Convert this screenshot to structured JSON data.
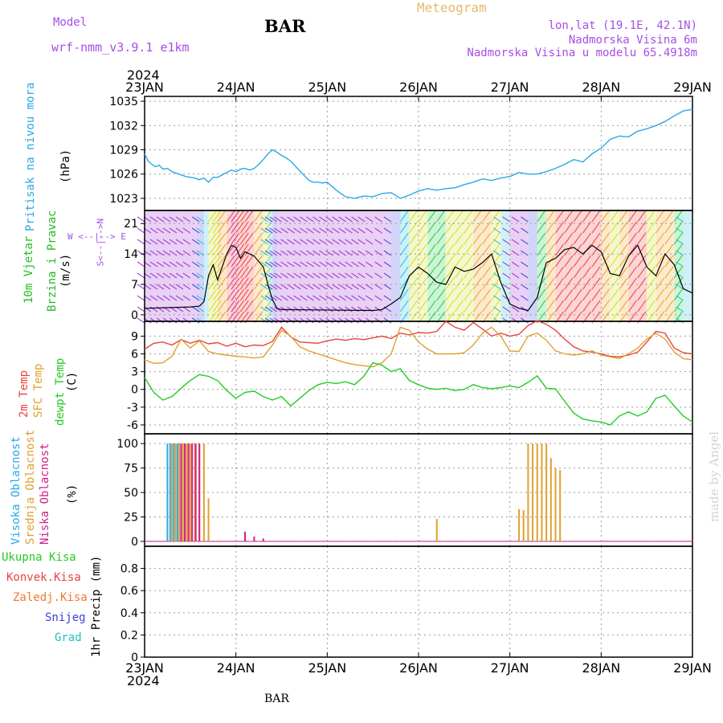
{
  "header": {
    "model_label": "Model",
    "model_name": "wrf-nmm_v3.9.1  e1km",
    "title": "BAR",
    "meteogram": "Meteogram",
    "lonlat": "lon,lat (19.1E, 42.1N)",
    "elevation": "Nadmorska Visina 6m",
    "model_elevation": "Nadmorska Visina u modelu 65.4918m",
    "footer": "BAR",
    "made_by": "made by Angel"
  },
  "colors": {
    "pressure": "#29a8e8",
    "temp2m": "#e8433f",
    "sfc_temp": "#e0a030",
    "dewpt": "#22cc22",
    "high_cloud": "#29a8e8",
    "mid_cloud": "#e0a030",
    "low_cloud": "#cc2288",
    "wind_label": "#22bb22",
    "compass": "#a64ee6",
    "purple": "#a64ee6",
    "grid": "#999999"
  },
  "time_axis": {
    "year": "2024",
    "labels": [
      "23JAN",
      "24JAN",
      "25JAN",
      "26JAN",
      "27JAN",
      "28JAN",
      "29JAN"
    ]
  },
  "panels": {
    "pressure": {
      "label": "Pritisak na nivou mora",
      "unit": "(hPa)"
    },
    "wind": {
      "label1": "10m Vjetar",
      "label2": "Brzina i Pravac",
      "unit": "(m/s)",
      "compass_ns": "S<--|-->N",
      "compass_ew": "W <--|--> E"
    },
    "temp": {
      "label1": "2m Temp",
      "label2": "SFC Temp",
      "label3": "dewpt Temp",
      "unit": "(C)"
    },
    "cloud": {
      "label1": "Visoka Oblacnost",
      "label2": "Srednja Oblacnost",
      "label3": "Niska Oblacnost",
      "unit": "(%)"
    },
    "precip": {
      "unit": "1hr Precip (mm)",
      "legend": [
        "Ukupna Kisa",
        "Konvek.Kisa",
        "Zaledj.Kisa",
        "Snijeg",
        "Grad"
      ]
    }
  },
  "chart_data": [
    {
      "type": "line",
      "name": "pressure",
      "x": [
        0,
        0.04,
        0.08,
        0.12,
        0.16,
        0.2,
        0.25,
        0.3,
        0.35,
        0.4,
        0.45,
        0.5,
        0.55,
        0.6,
        0.65,
        0.7,
        0.75,
        0.8,
        0.85,
        0.9,
        0.95,
        1.0,
        1.05,
        1.1,
        1.15,
        1.2,
        1.25,
        1.3,
        1.35,
        1.4,
        1.45,
        1.5,
        1.55,
        1.6,
        1.65,
        1.7,
        1.75,
        1.8,
        1.85,
        1.9,
        1.95,
        2.0,
        2.05,
        2.1,
        2.15,
        2.2,
        2.3,
        2.4,
        2.5,
        2.6,
        2.7,
        2.8,
        2.9,
        3.0,
        3.1,
        3.2,
        3.3,
        3.4,
        3.5,
        3.6,
        3.7,
        3.8,
        3.9,
        4.0,
        4.1,
        4.2,
        4.3,
        4.4,
        4.5,
        4.6,
        4.7,
        4.8,
        4.9,
        5.0,
        5.1,
        5.2,
        5.3,
        5.4,
        5.5,
        5.6,
        5.7,
        5.8,
        5.9,
        6.0
      ],
      "values": [
        1028.5,
        1027.6,
        1027.2,
        1026.9,
        1027.1,
        1026.6,
        1026.7,
        1026.3,
        1026.1,
        1025.9,
        1025.7,
        1025.6,
        1025.5,
        1025.3,
        1025.5,
        1025.0,
        1025.6,
        1025.6,
        1025.9,
        1026.2,
        1026.5,
        1026.3,
        1026.6,
        1026.7,
        1026.5,
        1026.7,
        1027.2,
        1027.8,
        1028.5,
        1029.0,
        1028.7,
        1028.3,
        1028.0,
        1027.6,
        1027.0,
        1026.4,
        1025.8,
        1025.2,
        1025.0,
        1025.0,
        1024.9,
        1025.0,
        1024.5,
        1024.0,
        1023.6,
        1023.2,
        1023.0,
        1023.3,
        1023.2,
        1023.6,
        1023.7,
        1023.0,
        1023.4,
        1023.9,
        1024.2,
        1024.0,
        1024.2,
        1024.3,
        1024.7,
        1025.0,
        1025.4,
        1025.2,
        1025.5,
        1025.7,
        1026.2,
        1026.0,
        1026.0,
        1026.3,
        1026.7,
        1027.2,
        1027.8,
        1027.5,
        1028.5,
        1029.2,
        1030.3,
        1030.7,
        1030.6,
        1031.3,
        1031.6,
        1032.0,
        1032.5,
        1033.2,
        1033.8,
        1034.0
      ]
    },
    {
      "type": "line",
      "name": "wind-speed",
      "x": [
        0.0,
        0.5,
        0.6,
        0.65,
        0.7,
        0.75,
        0.8,
        0.9,
        0.95,
        1.0,
        1.05,
        1.1,
        1.2,
        1.3,
        1.35,
        1.4,
        1.45,
        1.5,
        2.5,
        2.6,
        2.7,
        2.8,
        2.9,
        3.0,
        3.1,
        3.2,
        3.3,
        3.4,
        3.5,
        3.6,
        3.7,
        3.8,
        3.9,
        4.0,
        4.1,
        4.2,
        4.3,
        4.4,
        4.5,
        4.6,
        4.7,
        4.8,
        4.9,
        5.0,
        5.1,
        5.2,
        5.3,
        5.4,
        5.5,
        5.6,
        5.7,
        5.8,
        5.9,
        6.0
      ],
      "values": [
        1.5,
        1.8,
        2.0,
        3.0,
        9.0,
        11.5,
        8.0,
        14.0,
        16.0,
        15.5,
        13.0,
        14.5,
        13.5,
        11.0,
        7.0,
        3.5,
        1.5,
        1.2,
        1.0,
        1.2,
        2.5,
        4.0,
        9.0,
        11.0,
        9.5,
        7.5,
        7.0,
        11.0,
        10.0,
        10.5,
        12.0,
        14.0,
        7.5,
        2.5,
        1.5,
        1.0,
        4.0,
        12.0,
        13.0,
        15.0,
        15.5,
        14.0,
        16.0,
        14.5,
        9.5,
        9.0,
        13.5,
        16.0,
        11.0,
        9.0,
        14.0,
        11.5,
        6.0,
        5.0
      ]
    },
    {
      "type": "line",
      "name": "temperatures",
      "x": [
        0,
        0.1,
        0.2,
        0.3,
        0.4,
        0.5,
        0.6,
        0.7,
        0.8,
        0.9,
        1.0,
        1.1,
        1.2,
        1.3,
        1.4,
        1.5,
        1.6,
        1.7,
        1.8,
        1.9,
        2.0,
        2.1,
        2.2,
        2.3,
        2.4,
        2.5,
        2.6,
        2.7,
        2.8,
        2.9,
        3.0,
        3.1,
        3.2,
        3.3,
        3.4,
        3.5,
        3.6,
        3.7,
        3.8,
        3.9,
        4.0,
        4.1,
        4.2,
        4.3,
        4.4,
        4.5,
        4.6,
        4.7,
        4.8,
        4.9,
        5.0,
        5.1,
        5.2,
        5.3,
        5.4,
        5.5,
        5.6,
        5.7,
        5.8,
        5.9,
        6.0
      ],
      "series": [
        {
          "name": "2m Temp",
          "values": [
            6.8,
            7.8,
            8.0,
            7.5,
            8.4,
            7.8,
            8.3,
            7.7,
            7.9,
            7.3,
            7.8,
            7.2,
            7.5,
            7.4,
            8.1,
            10.5,
            8.9,
            8.0,
            7.9,
            7.8,
            8.2,
            8.5,
            8.3,
            8.6,
            8.4,
            8.7,
            9.0,
            8.6,
            9.5,
            9.2,
            9.6,
            9.5,
            9.8,
            11.5,
            10.5,
            10.0,
            11.3,
            10.2,
            9.0,
            9.5,
            9.0,
            9.3,
            10.8,
            11.6,
            11.0,
            10.0,
            8.5,
            7.2,
            6.5,
            6.3,
            6.0,
            5.6,
            5.5,
            5.8,
            6.3,
            8.0,
            9.8,
            9.5,
            7.0,
            6.2,
            6.0
          ]
        },
        {
          "name": "SFC Temp",
          "values": [
            5.0,
            4.4,
            4.5,
            5.6,
            8.5,
            7.0,
            8.2,
            6.4,
            6.0,
            5.8,
            5.6,
            5.5,
            5.3,
            5.5,
            7.5,
            10.0,
            9.0,
            7.2,
            6.5,
            6.0,
            5.5,
            5.0,
            4.5,
            4.2,
            4.0,
            3.8,
            4.5,
            6.0,
            10.5,
            10.0,
            8.0,
            6.8,
            6.0,
            6.0,
            6.0,
            6.2,
            7.5,
            9.5,
            10.5,
            9.0,
            6.5,
            6.4,
            9.0,
            9.5,
            8.3,
            6.5,
            6.0,
            5.8,
            6.0,
            6.5,
            5.8,
            5.5,
            5.2,
            6.0,
            7.0,
            8.5,
            9.5,
            8.5,
            6.3,
            5.2,
            5.0
          ]
        },
        {
          "name": "dewpt Temp",
          "values": [
            2.0,
            -0.5,
            -1.8,
            -1.2,
            0.2,
            1.5,
            2.5,
            2.2,
            1.5,
            -0.2,
            -1.5,
            -0.5,
            -0.3,
            -1.2,
            -1.8,
            -1.2,
            -2.8,
            -1.5,
            -0.2,
            0.8,
            1.2,
            1.0,
            1.3,
            0.8,
            2.2,
            4.5,
            4.1,
            3.0,
            3.5,
            1.5,
            0.8,
            0.2,
            0.0,
            0.2,
            -0.2,
            0.0,
            0.8,
            0.3,
            0.1,
            0.3,
            0.6,
            0.3,
            1.2,
            2.3,
            0.2,
            0.1,
            -2.0,
            -4.0,
            -5.0,
            -5.3,
            -5.5,
            -6.0,
            -4.5,
            -3.8,
            -4.5,
            -3.8,
            -1.5,
            -1.0,
            -2.8,
            -4.5,
            -5.5
          ]
        }
      ]
    },
    {
      "type": "bar",
      "name": "cloud",
      "series": [
        {
          "name": "high",
          "x": [
            0.25,
            0.28,
            0.32,
            0.36
          ],
          "values": [
            100,
            100,
            100,
            100
          ]
        },
        {
          "name": "mid",
          "x": [
            0.3,
            0.34,
            0.38,
            0.42,
            0.46,
            0.5,
            0.55,
            0.6,
            0.65,
            0.7,
            3.2,
            4.1,
            4.15,
            4.2,
            4.25,
            4.3,
            4.35,
            4.4,
            4.45,
            4.5,
            4.55
          ],
          "values": [
            100,
            100,
            100,
            100,
            100,
            100,
            100,
            100,
            100,
            44,
            23,
            33,
            32,
            100,
            100,
            100,
            100,
            100,
            85,
            75,
            73
          ]
        },
        {
          "name": "low",
          "x": [
            0.4,
            0.44,
            0.48,
            0.52,
            0.56,
            0.6,
            1.1,
            1.2,
            1.3
          ],
          "values": [
            100,
            100,
            100,
            100,
            100,
            100,
            10,
            5,
            3
          ]
        }
      ]
    },
    {
      "type": "bar",
      "name": "precip",
      "values": []
    }
  ]
}
